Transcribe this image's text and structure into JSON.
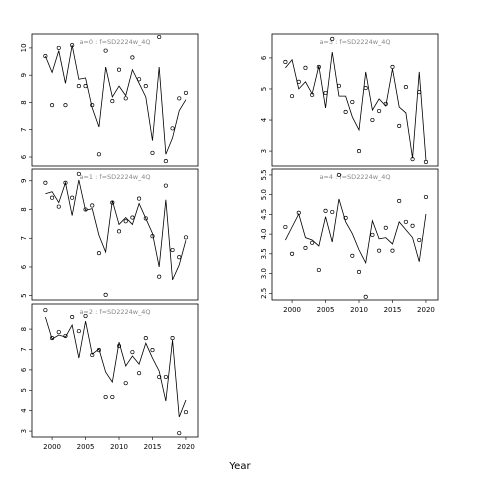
{
  "xlabel": "Year",
  "chart_data": [
    {
      "type": "line",
      "title": "a=0  :  f=SD2224w_4Q",
      "x": [
        1999,
        2000,
        2001,
        2002,
        2003,
        2004,
        2005,
        2006,
        2007,
        2008,
        2009,
        2010,
        2011,
        2012,
        2013,
        2014,
        2015,
        2016,
        2017,
        2018,
        2019,
        2020
      ],
      "xlim": [
        1997,
        2021.8
      ],
      "ylim": [
        5.67,
        10.51
      ],
      "yticks": [
        6,
        7,
        8,
        9,
        10
      ],
      "series": [
        {
          "style": "line",
          "color": "#000000",
          "values": [
            9.7,
            9.1,
            9.9,
            8.7,
            10.1,
            8.85,
            8.9,
            7.8,
            7.1,
            9.3,
            8.2,
            8.6,
            8.25,
            9.2,
            8.7,
            8.2,
            6.6,
            9.3,
            6.1,
            6.7,
            7.7,
            8.1
          ]
        },
        {
          "style": "points",
          "color": "#000000",
          "values": [
            9.7,
            7.9,
            10.0,
            7.9,
            10.1,
            8.6,
            8.6,
            7.9,
            6.1,
            9.9,
            8.05,
            9.2,
            8.15,
            9.65,
            8.85,
            8.6,
            6.15,
            10.4,
            5.85,
            7.05,
            8.15,
            8.35
          ]
        }
      ]
    },
    {
      "type": "line",
      "title": "a=1  :  f=SD2224w_4Q",
      "x": [
        1999,
        2000,
        2001,
        2002,
        2003,
        2004,
        2005,
        2006,
        2007,
        2008,
        2009,
        2010,
        2011,
        2012,
        2013,
        2014,
        2015,
        2016,
        2017,
        2018,
        2019,
        2020
      ],
      "xlim": [
        1997,
        2021.8
      ],
      "ylim": [
        4.85,
        9.41
      ],
      "yticks": [
        5,
        6,
        7,
        8,
        9
      ],
      "series": [
        {
          "style": "line",
          "color": "#000000",
          "values": [
            8.55,
            8.62,
            8.24,
            8.93,
            7.79,
            9.03,
            7.97,
            8.03,
            7.1,
            6.52,
            8.31,
            7.48,
            7.72,
            7.48,
            8.21,
            7.69,
            7.17,
            6.0,
            8.34,
            5.55,
            6.07,
            6.93
          ]
        },
        {
          "style": "points",
          "color": "#000000",
          "values": [
            8.93,
            8.41,
            8.1,
            8.93,
            8.41,
            9.24,
            8.0,
            8.14,
            6.48,
            5.03,
            8.24,
            7.24,
            7.59,
            7.72,
            8.38,
            7.69,
            7.07,
            5.66,
            8.83,
            6.59,
            6.34,
            7.03
          ]
        }
      ]
    },
    {
      "type": "line",
      "title": "a=2  :  f=SD2224w_4Q",
      "x": [
        1999,
        2000,
        2001,
        2002,
        2003,
        2004,
        2005,
        2006,
        2007,
        2008,
        2009,
        2010,
        2011,
        2012,
        2013,
        2014,
        2015,
        2016,
        2017,
        2018,
        2019,
        2020
      ],
      "xlim": [
        1997,
        2021.8
      ],
      "xticks": [
        2000,
        2005,
        2010,
        2015,
        2020
      ],
      "ylim": [
        2.71,
        9.23
      ],
      "yticks": [
        3,
        4,
        5,
        6,
        7,
        8
      ],
      "series": [
        {
          "style": "line",
          "color": "#000000",
          "values": [
            8.59,
            7.51,
            7.71,
            7.61,
            8.2,
            6.58,
            8.39,
            6.77,
            7.02,
            5.89,
            5.4,
            7.36,
            6.19,
            6.68,
            6.28,
            7.31,
            6.58,
            5.94,
            4.47,
            7.46,
            3.69,
            4.52
          ]
        },
        {
          "style": "points",
          "color": "#000000",
          "values": [
            8.93,
            7.56,
            7.85,
            7.66,
            8.59,
            7.9,
            8.64,
            6.73,
            6.97,
            4.67,
            4.67,
            7.17,
            5.35,
            6.87,
            5.84,
            7.56,
            6.97,
            5.65,
            5.65,
            7.56,
            2.9,
            3.93
          ]
        }
      ]
    },
    {
      "type": "line",
      "title": "a=3  :  f=SD2224w_4Q",
      "x": [
        1999,
        2000,
        2001,
        2002,
        2003,
        2004,
        2005,
        2006,
        2007,
        2008,
        2009,
        2010,
        2011,
        2012,
        2013,
        2014,
        2015,
        2016,
        2017,
        2018,
        2019,
        2020
      ],
      "xlim": [
        1997,
        2021.8
      ],
      "ylim": [
        2.52,
        6.77
      ],
      "yticks": [
        3,
        4,
        5,
        6
      ],
      "series": [
        {
          "style": "line",
          "color": "#000000",
          "values": [
            5.68,
            5.94,
            5.0,
            5.23,
            4.84,
            5.74,
            4.39,
            6.19,
            4.77,
            4.77,
            4.1,
            3.68,
            5.55,
            4.32,
            4.68,
            4.45,
            5.65,
            4.42,
            4.23,
            2.77,
            5.55,
            2.71
          ]
        },
        {
          "style": "points",
          "color": "#000000",
          "values": [
            5.87,
            4.77,
            5.23,
            5.68,
            4.81,
            5.71,
            4.87,
            6.61,
            5.1,
            4.26,
            4.58,
            3.0,
            5.03,
            4.0,
            4.29,
            4.52,
            5.71,
            3.81,
            5.06,
            2.74,
            4.9,
            2.65
          ]
        }
      ]
    },
    {
      "type": "line",
      "title": "a=4  :  f=SD2224w_4Q",
      "x": [
        1999,
        2000,
        2001,
        2002,
        2003,
        2004,
        2005,
        2006,
        2007,
        2008,
        2009,
        2010,
        2011,
        2012,
        2013,
        2014,
        2015,
        2016,
        2017,
        2018,
        2019,
        2020
      ],
      "xlim": [
        1997,
        2021.8
      ],
      "xticks": [
        2000,
        2005,
        2010,
        2015,
        2020
      ],
      "ylim": [
        2.33,
        5.65
      ],
      "yticks": [
        2.5,
        {
          "value": 3,
          "label": "3.0"
        },
        3.5,
        {
          "value": 4,
          "label": "4.0"
        },
        4.5,
        {
          "value": 5,
          "label": "5.0"
        },
        5.5
      ],
      "series": [
        {
          "style": "line",
          "color": "#000000",
          "values": [
            3.85,
            4.18,
            4.51,
            3.91,
            3.85,
            3.7,
            4.44,
            3.8,
            4.89,
            4.31,
            4.01,
            3.6,
            3.27,
            4.34,
            3.88,
            3.91,
            3.75,
            4.31,
            4.11,
            3.91,
            3.3,
            4.51
          ]
        },
        {
          "style": "points",
          "color": "#000000",
          "values": [
            4.18,
            3.5,
            4.54,
            3.65,
            3.78,
            3.09,
            4.59,
            4.56,
            5.5,
            4.41,
            3.45,
            3.04,
            2.41,
            3.98,
            3.58,
            4.16,
            3.58,
            4.84,
            4.31,
            4.21,
            3.85,
            4.94
          ]
        }
      ]
    }
  ]
}
